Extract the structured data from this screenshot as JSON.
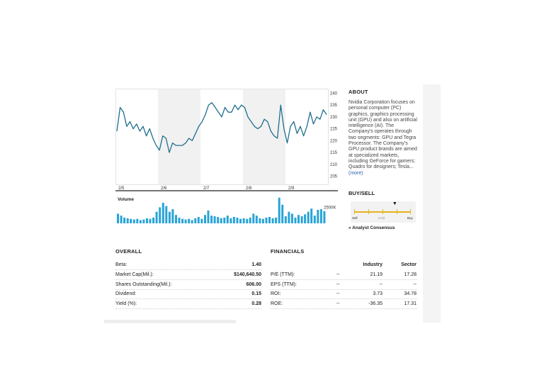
{
  "chart": {
    "y_ticks": [
      "240",
      "235",
      "230",
      "225",
      "220",
      "215",
      "210",
      "205"
    ],
    "x_ticks": [
      "2/5",
      "2/6",
      "2/7",
      "2/8",
      "2/9"
    ],
    "volume_label": "Volume",
    "volume_tick": "2500K",
    "line_color": "#1e6f8e",
    "volume_color": "#29a3d6",
    "shade_color": "#f1f1f1"
  },
  "chart_data": {
    "type": "line",
    "series": [
      {
        "values": [
          224,
          234,
          232,
          226,
          228,
          225,
          227,
          224,
          226,
          222,
          225,
          221,
          218,
          216,
          222,
          221,
          215,
          219,
          218,
          218,
          218,
          219,
          221,
          220,
          223,
          226,
          228,
          231,
          235,
          236,
          234,
          232,
          230,
          234,
          232,
          232,
          235,
          233,
          235,
          234,
          230,
          228,
          226,
          225,
          226,
          229,
          228,
          224,
          222,
          221,
          235,
          225,
          219,
          226,
          228,
          223,
          226,
          222,
          226,
          232,
          227,
          230,
          229,
          233,
          231
        ]
      }
    ],
    "ylim": [
      204,
      241
    ],
    "y_ticks": [
      240,
      235,
      230,
      225,
      220,
      215,
      210,
      205
    ],
    "x_ticks": [
      "2/5",
      "2/6",
      "2/7",
      "2/8",
      "2/9"
    ],
    "volume": {
      "values": [
        1500,
        1200,
        900,
        800,
        700,
        600,
        700,
        500,
        600,
        800,
        700,
        900,
        1800,
        2500,
        3200,
        2700,
        1800,
        2200,
        1300,
        900,
        700,
        600,
        700,
        500,
        800,
        1000,
        700,
        1300,
        2000,
        1200,
        1100,
        1000,
        800,
        900,
        1200,
        800,
        1000,
        900,
        700,
        800,
        700,
        900,
        1500,
        1200,
        800,
        700,
        900,
        1000,
        800,
        900,
        4000,
        2900,
        1100,
        1800,
        1500,
        900,
        1300,
        1100,
        1400,
        1800,
        2300,
        1200,
        2100,
        2200,
        1900
      ],
      "ylim": [
        0,
        4200
      ],
      "tick": "2500K"
    }
  },
  "about": {
    "title": "ABOUT",
    "text": "Nvidia Corporation focuses on personal computer (PC) graphics, graphics processing unit (GPU) and also on artificial intelligence (AI). The Company's operates through two segments: GPU and Tegra Processor. The Company's GPU product brands are aimed at specialized markets, including GeForce for gamers; Quadro for designers; Tesla... ",
    "more": "(more)"
  },
  "buysell": {
    "title": "BUY/SELL",
    "labels": [
      "Sell",
      "Hold",
      "Buy"
    ],
    "marker": "▼",
    "position": 0.72,
    "consensus": "» Analyst Consensus",
    "accent": "#e6b41e"
  },
  "overall": {
    "title": "OVERALL",
    "rows": [
      {
        "label": "Beta:",
        "value": "1.40"
      },
      {
        "label": "Market Cap(Mil.):",
        "value": "$140,640.50"
      },
      {
        "label": "Shares Outstanding(Mil.):",
        "value": "606.00"
      },
      {
        "label": "Dividend:",
        "value": "0.15"
      },
      {
        "label": "Yield (%):",
        "value": "0.28"
      }
    ]
  },
  "financials": {
    "title": "FINANCIALS",
    "headers": [
      "Industry",
      "Sector"
    ],
    "rows": [
      {
        "label": "P/E (TTM):",
        "company": "--",
        "industry": "21.19",
        "sector": "17.28"
      },
      {
        "label": "EPS (TTM):",
        "company": "--",
        "industry": "--",
        "sector": "--"
      },
      {
        "label": "ROI:",
        "company": "--",
        "industry": "3.73",
        "sector": "34.78"
      },
      {
        "label": "ROE:",
        "company": "--",
        "industry": "-36.35",
        "sector": "17.31"
      }
    ]
  }
}
